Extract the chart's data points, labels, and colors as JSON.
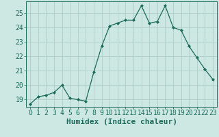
{
  "x": [
    0,
    1,
    2,
    3,
    4,
    5,
    6,
    7,
    8,
    9,
    10,
    11,
    12,
    13,
    14,
    15,
    16,
    17,
    18,
    19,
    20,
    21,
    22,
    23
  ],
  "y": [
    18.7,
    19.2,
    19.3,
    19.5,
    20.0,
    19.1,
    19.0,
    18.9,
    20.9,
    22.7,
    24.1,
    24.3,
    24.5,
    24.5,
    25.5,
    24.3,
    24.4,
    25.5,
    24.0,
    23.8,
    22.7,
    21.9,
    21.1,
    20.4
  ],
  "xlabel": "Humidex (Indice chaleur)",
  "xlim": [
    -0.5,
    23.5
  ],
  "ylim": [
    18.5,
    25.8
  ],
  "yticks": [
    19,
    20,
    21,
    22,
    23,
    24,
    25
  ],
  "xticks": [
    0,
    1,
    2,
    3,
    4,
    5,
    6,
    7,
    8,
    9,
    10,
    11,
    12,
    13,
    14,
    15,
    16,
    17,
    18,
    19,
    20,
    21,
    22,
    23
  ],
  "line_color": "#1a6b5a",
  "marker": "D",
  "marker_size": 2.0,
  "bg_color": "#cde8e2",
  "grid_color": "#aecec7",
  "label_color": "#1a6b5a",
  "xlabel_fontsize": 8,
  "tick_fontsize": 7
}
